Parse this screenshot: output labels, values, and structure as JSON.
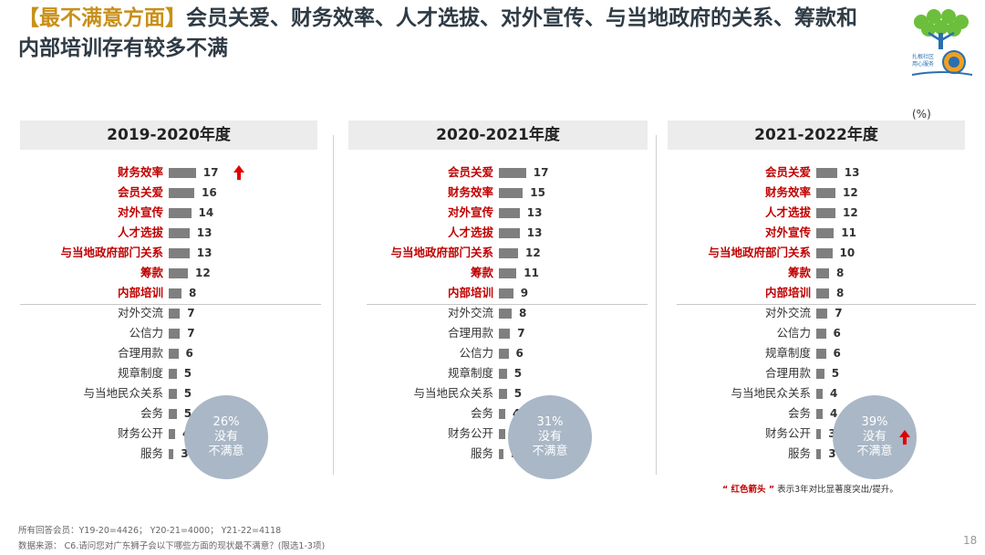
{
  "title": {
    "tag": "【最不满意方面】",
    "text": "会员关爱、财务效率、人才选拔、对外宣传、与当地政府的关系、筹款和内部培训存有较多不满"
  },
  "logo": {
    "text_top": "扎根社区",
    "text_bottom": "用心服务"
  },
  "unit_label": "(%)",
  "colors": {
    "highlight": "#c00000",
    "bar": "#7f7f7f",
    "bubble": "#a9b7c6",
    "title_tag": "#c8901a"
  },
  "chart_data": [
    {
      "type": "bar",
      "title": "2019-2020年度",
      "categories": [
        "财务效率",
        "会员关爱",
        "对外宣传",
        "人才选拔",
        "与当地政府部门关系",
        "筹款",
        "内部培训",
        "对外交流",
        "公信力",
        "合理用款",
        "规章制度",
        "与当地民众关系",
        "会务",
        "财务公开",
        "服务"
      ],
      "values": [
        17,
        16,
        14,
        13,
        13,
        12,
        8,
        7,
        7,
        6,
        5,
        5,
        5,
        4,
        3
      ],
      "highlight_count": 7,
      "arrow_rows": [
        0
      ],
      "none_pct": "26%",
      "none_line1": "没有",
      "none_line2": "不满意",
      "bubble_arrow": false
    },
    {
      "type": "bar",
      "title": "2020-2021年度",
      "categories": [
        "会员关爱",
        "财务效率",
        "对外宣传",
        "人才选拔",
        "与当地政府部门关系",
        "筹款",
        "内部培训",
        "对外交流",
        "合理用款",
        "公信力",
        "规章制度",
        "与当地民众关系",
        "会务",
        "财务公开",
        "服务"
      ],
      "values": [
        17,
        15,
        13,
        13,
        12,
        11,
        9,
        8,
        7,
        6,
        5,
        5,
        4,
        4,
        3
      ],
      "highlight_count": 7,
      "arrow_rows": [],
      "none_pct": "31%",
      "none_line1": "没有",
      "none_line2": "不满意",
      "bubble_arrow": false
    },
    {
      "type": "bar",
      "title": "2021-2022年度",
      "categories": [
        "会员关爱",
        "财务效率",
        "人才选拔",
        "对外宣传",
        "与当地政府部门关系",
        "筹款",
        "内部培训",
        "对外交流",
        "公信力",
        "规章制度",
        "合理用款",
        "与当地民众关系",
        "会务",
        "财务公开",
        "服务"
      ],
      "values": [
        13,
        12,
        12,
        11,
        10,
        8,
        8,
        7,
        6,
        6,
        5,
        4,
        4,
        3,
        3
      ],
      "highlight_count": 7,
      "arrow_rows": [],
      "none_pct": "39%",
      "none_line1": "没有",
      "none_line2": "不满意",
      "bubble_arrow": true
    }
  ],
  "legend_note": {
    "quoted": "“ 红色箭头 ”",
    "text": "表示3年对比显著度突出/提升。"
  },
  "footer": {
    "sample": "所有回答会员：Y19-20=4426； Y20-21=4000； Y21-22=4118",
    "source": "数据来源： C6.请问您对广东狮子会以下哪些方面的现状最不满意？(限选1-3项)"
  },
  "page_number": "18"
}
